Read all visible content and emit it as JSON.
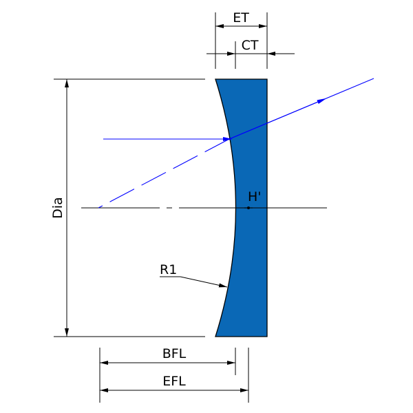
{
  "labels": {
    "et": "ET",
    "ct": "CT",
    "dia": "Dia",
    "principal_plane": "H'",
    "radius": "R1",
    "bfl": "BFL",
    "efl": "EFL"
  },
  "colors": {
    "lens_fill": "#0a68b6",
    "ray": "#0000ff",
    "lines": "#000000"
  }
}
